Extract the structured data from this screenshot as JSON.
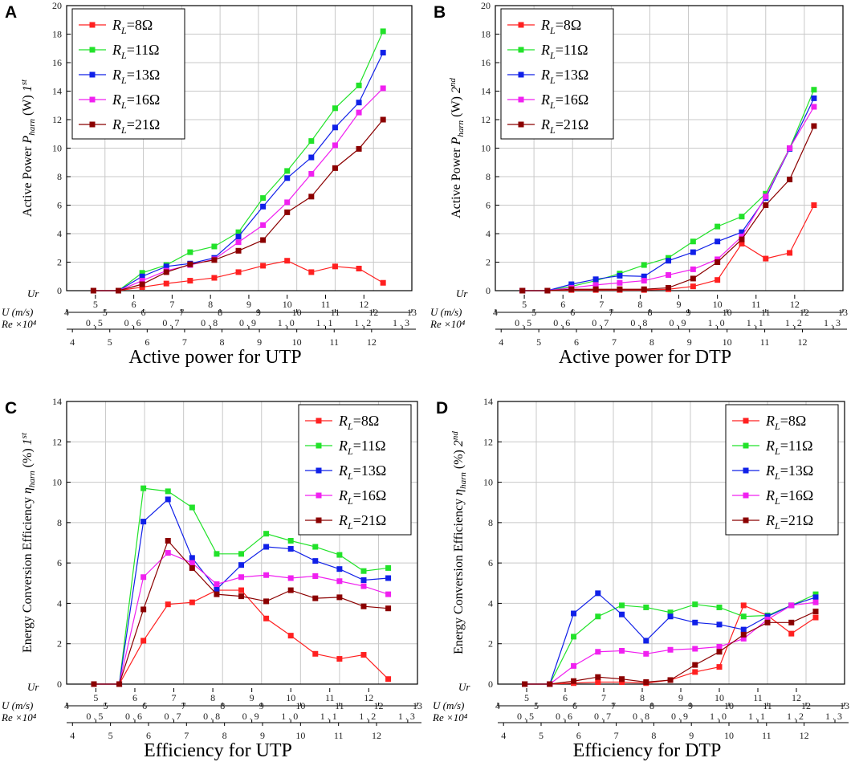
{
  "figure": {
    "series_names": [
      "R_L=8Ω",
      "R_L=11Ω",
      "R_L=13Ω",
      "R_L=16Ω",
      "R_L=21Ω"
    ],
    "series_colors": [
      "#ff2020",
      "#22e22a",
      "#1020e8",
      "#f020f0",
      "#8b0000"
    ],
    "row_labels": {
      "ur": "Ur",
      "u": "U (m/s)",
      "re": "Re ×10⁴"
    },
    "u_ticks": [
      "4",
      "5",
      "6",
      "7",
      "8",
      "9",
      "10",
      "11",
      "12",
      "13"
    ],
    "ur_ticks": [
      "5",
      "6",
      "7",
      "8",
      "9",
      "10",
      "11",
      "12"
    ],
    "re_ticks": [
      "0.5",
      "0.6",
      "0.7",
      "0.8",
      "0.9",
      "1.0",
      "1.1",
      "1.2",
      "1.3"
    ],
    "re2_ticks": [
      "4",
      "5",
      "6",
      "7",
      "8",
      "9",
      "10",
      "11",
      "12"
    ]
  },
  "chart_data": [
    {
      "panel": "A",
      "type": "line",
      "title": "Active power for UTP",
      "ylabel": "Active Power P_harn (W) 1st",
      "ylim": [
        0,
        20
      ],
      "yticks": [
        0,
        2,
        4,
        6,
        8,
        10,
        12,
        14,
        16,
        18,
        20
      ],
      "xlabel": "U (m/s)",
      "xlim": [
        4,
        13
      ],
      "legend_position": "top-left",
      "x": [
        4.7,
        5.35,
        5.97,
        6.6,
        7.22,
        7.85,
        8.48,
        9.12,
        9.75,
        10.38,
        11.0,
        11.62,
        12.25
      ],
      "series": [
        {
          "name": "R_L=8Ω",
          "values": [
            0,
            0,
            0.25,
            0.5,
            0.7,
            0.9,
            1.3,
            1.75,
            2.1,
            1.3,
            1.7,
            1.55,
            0.55
          ]
        },
        {
          "name": "R_L=11Ω",
          "values": [
            0,
            0,
            1.25,
            1.8,
            2.7,
            3.1,
            4.1,
            6.5,
            8.4,
            10.5,
            12.8,
            14.4,
            18.2
          ]
        },
        {
          "name": "R_L=13Ω",
          "values": [
            0,
            0,
            1.0,
            1.7,
            1.9,
            2.3,
            3.8,
            5.9,
            7.9,
            9.35,
            11.45,
            13.2,
            16.7
          ]
        },
        {
          "name": "R_L=16Ω",
          "values": [
            0,
            0,
            0.7,
            1.4,
            1.8,
            2.2,
            3.4,
            4.6,
            6.2,
            8.2,
            10.2,
            12.5,
            14.2
          ]
        },
        {
          "name": "R_L=21Ω",
          "values": [
            0,
            0,
            0.45,
            1.3,
            1.85,
            2.15,
            2.8,
            3.55,
            5.5,
            6.6,
            8.6,
            9.95,
            12.0
          ]
        }
      ]
    },
    {
      "panel": "B",
      "type": "line",
      "title": "Active power for DTP",
      "ylabel": "Active Power P_harn (W) 2nd",
      "ylim": [
        0,
        20
      ],
      "yticks": [
        0,
        2,
        4,
        6,
        8,
        10,
        12,
        14,
        16,
        18,
        20
      ],
      "xlabel": "U (m/s)",
      "xlim": [
        4,
        13
      ],
      "legend_position": "top-left",
      "x": [
        4.7,
        5.35,
        5.97,
        6.6,
        7.22,
        7.85,
        8.48,
        9.12,
        9.75,
        10.38,
        11.0,
        11.62,
        12.25
      ],
      "series": [
        {
          "name": "R_L=8Ω",
          "values": [
            0,
            0,
            0.05,
            0.05,
            0.05,
            0.05,
            0.1,
            0.3,
            0.75,
            3.3,
            2.25,
            2.65,
            6.0
          ]
        },
        {
          "name": "R_L=11Ω",
          "values": [
            0,
            0,
            0.3,
            0.7,
            1.2,
            1.8,
            2.3,
            3.45,
            4.5,
            5.2,
            6.8,
            10.0,
            14.1
          ]
        },
        {
          "name": "R_L=13Ω",
          "values": [
            0,
            0,
            0.45,
            0.8,
            1.05,
            1.0,
            2.1,
            2.7,
            3.45,
            4.1,
            6.5,
            9.95,
            13.5
          ]
        },
        {
          "name": "R_L=16Ω",
          "values": [
            0,
            0,
            0.2,
            0.4,
            0.55,
            0.7,
            1.1,
            1.5,
            2.2,
            3.8,
            6.6,
            10.0,
            12.9
          ]
        },
        {
          "name": "R_L=21Ω",
          "values": [
            0,
            0,
            0.1,
            0.1,
            0.1,
            0.1,
            0.2,
            0.85,
            2.0,
            3.6,
            6.0,
            7.8,
            11.55
          ]
        }
      ]
    },
    {
      "panel": "C",
      "type": "line",
      "title": "Efficiency for UTP",
      "ylabel": "Energy Conversion Efficiency η_harn (%) 1st",
      "ylim": [
        0,
        14
      ],
      "yticks": [
        0,
        2,
        4,
        6,
        8,
        10,
        12,
        14
      ],
      "xlabel": "U (m/s)",
      "xlim": [
        4,
        13
      ],
      "legend_position": "top-right",
      "x": [
        4.7,
        5.35,
        5.97,
        6.6,
        7.22,
        7.85,
        8.48,
        9.12,
        9.75,
        10.38,
        11.0,
        11.62,
        12.25
      ],
      "series": [
        {
          "name": "R_L=8Ω",
          "values": [
            0,
            0,
            2.15,
            3.95,
            4.05,
            4.65,
            4.65,
            3.25,
            2.4,
            1.5,
            1.25,
            1.45,
            0.25
          ]
        },
        {
          "name": "R_L=11Ω",
          "values": [
            0,
            0,
            9.7,
            9.55,
            8.75,
            6.45,
            6.45,
            7.45,
            7.1,
            6.8,
            6.4,
            5.6,
            5.75
          ]
        },
        {
          "name": "R_L=13Ω",
          "values": [
            0,
            0,
            8.05,
            9.15,
            6.25,
            4.7,
            5.9,
            6.8,
            6.7,
            6.1,
            5.7,
            5.15,
            5.25
          ]
        },
        {
          "name": "R_L=16Ω",
          "values": [
            0,
            0,
            5.3,
            6.5,
            6.0,
            4.95,
            5.3,
            5.4,
            5.25,
            5.35,
            5.1,
            4.85,
            4.45
          ]
        },
        {
          "name": "R_L=21Ω",
          "values": [
            0,
            0,
            3.7,
            7.1,
            5.75,
            4.45,
            4.35,
            4.1,
            4.65,
            4.25,
            4.3,
            3.85,
            3.75
          ]
        }
      ]
    },
    {
      "panel": "D",
      "type": "line",
      "title": "Efficiency for DTP",
      "ylabel": "Energy Conversion Efficiency η_harn (%) 2nd",
      "ylim": [
        0,
        14
      ],
      "yticks": [
        0,
        2,
        4,
        6,
        8,
        10,
        12,
        14
      ],
      "xlabel": "U (m/s)",
      "xlim": [
        4,
        13
      ],
      "legend_position": "top-right",
      "x": [
        4.7,
        5.35,
        5.97,
        6.6,
        7.22,
        7.85,
        8.48,
        9.12,
        9.75,
        10.38,
        11.0,
        11.62,
        12.25
      ],
      "series": [
        {
          "name": "R_L=8Ω",
          "values": [
            0,
            0,
            0.05,
            0.1,
            0.1,
            0.05,
            0.2,
            0.6,
            0.85,
            3.9,
            3.4,
            2.5,
            3.3
          ]
        },
        {
          "name": "R_L=11Ω",
          "values": [
            0,
            0,
            2.35,
            3.35,
            3.9,
            3.8,
            3.55,
            3.95,
            3.8,
            3.35,
            3.4,
            3.9,
            4.45
          ]
        },
        {
          "name": "R_L=13Ω",
          "values": [
            0,
            0,
            3.5,
            4.5,
            3.45,
            2.15,
            3.35,
            3.05,
            2.95,
            2.7,
            3.35,
            3.9,
            4.3
          ]
        },
        {
          "name": "R_L=16Ω",
          "values": [
            0,
            0,
            0.9,
            1.6,
            1.65,
            1.5,
            1.7,
            1.75,
            1.85,
            2.25,
            3.2,
            3.9,
            4.05
          ]
        },
        {
          "name": "R_L=21Ω",
          "values": [
            0,
            0,
            0.15,
            0.35,
            0.25,
            0.1,
            0.2,
            0.95,
            1.6,
            2.45,
            3.05,
            3.05,
            3.6
          ]
        }
      ]
    }
  ]
}
